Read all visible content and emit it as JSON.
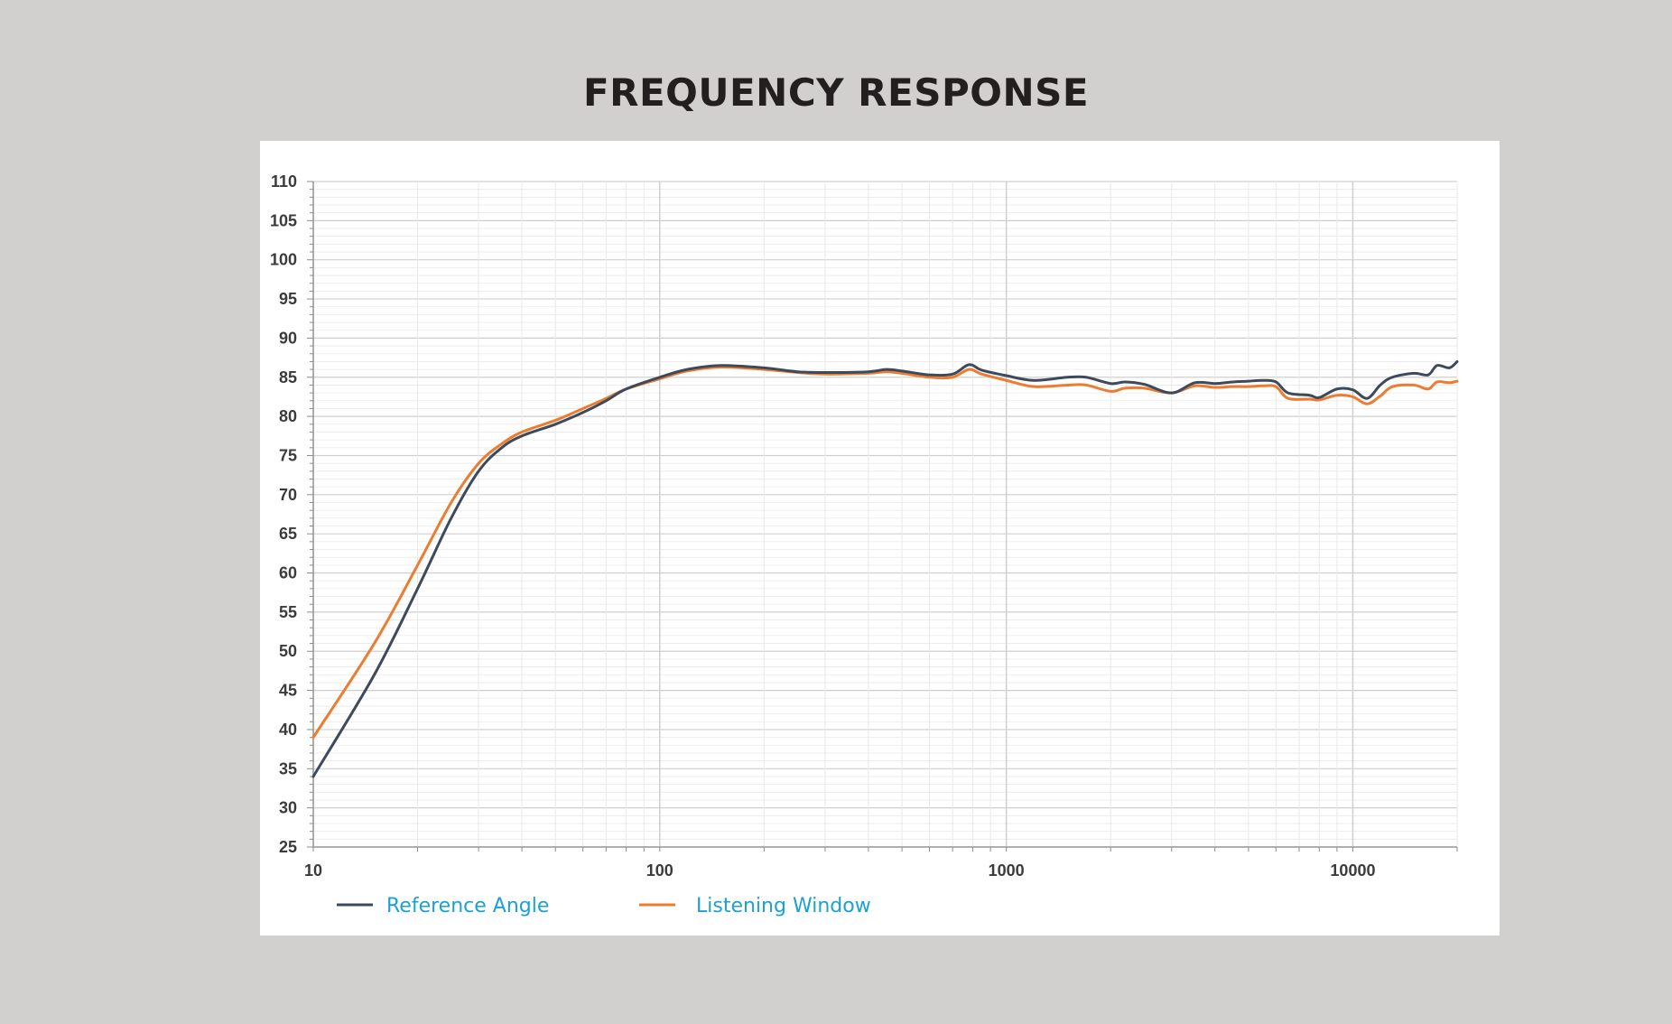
{
  "title": "FREQUENCY RESPONSE",
  "colors": {
    "background": "#d1d0ce",
    "panel": "#ffffff",
    "reference_angle": "#3d4a5c",
    "listening_window": "#ec7c30",
    "legend_text": "#1ba1d6",
    "grid_major": "#cfcfcf",
    "grid_minor": "#e9e9e9"
  },
  "chart_data": {
    "type": "line",
    "title": "FREQUENCY RESPONSE",
    "xlabel": "",
    "ylabel": "",
    "xscale": "log",
    "xlim": [
      10,
      20000
    ],
    "ylim": [
      25,
      110
    ],
    "grid": true,
    "legend_position": "bottom-left",
    "x_ticks": [
      10,
      100,
      1000,
      10000
    ],
    "x_tick_labels": [
      "10",
      "100",
      "1000",
      "10000"
    ],
    "y_ticks": [
      110,
      105,
      100,
      95,
      90,
      85,
      80,
      75,
      70,
      65,
      60,
      55,
      50,
      45,
      40,
      35,
      30,
      25
    ],
    "y_tick_labels": [
      "110",
      "105",
      "100",
      "95",
      "90",
      "85",
      "80",
      "75",
      "70",
      "65",
      "60",
      "55",
      "50",
      "45",
      "40",
      "35",
      "30",
      "25"
    ],
    "series": [
      {
        "name": "Reference Angle",
        "color": "#3d4a5c",
        "points": [
          [
            10,
            34
          ],
          [
            15,
            47
          ],
          [
            20,
            58
          ],
          [
            25,
            67
          ],
          [
            30,
            73
          ],
          [
            35,
            76
          ],
          [
            40,
            77.5
          ],
          [
            50,
            79
          ],
          [
            60,
            80.5
          ],
          [
            70,
            82
          ],
          [
            80,
            83.5
          ],
          [
            100,
            85
          ],
          [
            120,
            86
          ],
          [
            150,
            86.5
          ],
          [
            200,
            86.2
          ],
          [
            250,
            85.7
          ],
          [
            300,
            85.6
          ],
          [
            400,
            85.7
          ],
          [
            450,
            86
          ],
          [
            500,
            85.8
          ],
          [
            600,
            85.3
          ],
          [
            700,
            85.4
          ],
          [
            780,
            86.6
          ],
          [
            850,
            85.9
          ],
          [
            1000,
            85.2
          ],
          [
            1200,
            84.6
          ],
          [
            1500,
            85
          ],
          [
            1700,
            85
          ],
          [
            2000,
            84.2
          ],
          [
            2200,
            84.4
          ],
          [
            2500,
            84.1
          ],
          [
            3000,
            83
          ],
          [
            3500,
            84.3
          ],
          [
            4000,
            84.2
          ],
          [
            4500,
            84.4
          ],
          [
            5000,
            84.5
          ],
          [
            5500,
            84.6
          ],
          [
            6000,
            84.4
          ],
          [
            6500,
            83
          ],
          [
            7500,
            82.7
          ],
          [
            8000,
            82.4
          ],
          [
            9000,
            83.5
          ],
          [
            10000,
            83.4
          ],
          [
            11000,
            82.3
          ],
          [
            12000,
            84
          ],
          [
            13000,
            85
          ],
          [
            15000,
            85.5
          ],
          [
            16500,
            85.3
          ],
          [
            17500,
            86.5
          ],
          [
            19000,
            86.2
          ],
          [
            20000,
            87
          ]
        ]
      },
      {
        "name": "Listening Window",
        "color": "#ec7c30",
        "points": [
          [
            10,
            39
          ],
          [
            15,
            51
          ],
          [
            20,
            61
          ],
          [
            25,
            69
          ],
          [
            30,
            74
          ],
          [
            35,
            76.5
          ],
          [
            40,
            78
          ],
          [
            50,
            79.5
          ],
          [
            60,
            81
          ],
          [
            70,
            82.3
          ],
          [
            80,
            83.5
          ],
          [
            100,
            84.8
          ],
          [
            120,
            85.8
          ],
          [
            150,
            86.3
          ],
          [
            200,
            86
          ],
          [
            250,
            85.6
          ],
          [
            300,
            85.4
          ],
          [
            400,
            85.5
          ],
          [
            450,
            85.7
          ],
          [
            500,
            85.5
          ],
          [
            600,
            85
          ],
          [
            700,
            85
          ],
          [
            780,
            86
          ],
          [
            850,
            85.4
          ],
          [
            1000,
            84.6
          ],
          [
            1200,
            83.8
          ],
          [
            1500,
            84
          ],
          [
            1700,
            84
          ],
          [
            2000,
            83.2
          ],
          [
            2200,
            83.6
          ],
          [
            2500,
            83.6
          ],
          [
            3000,
            83
          ],
          [
            3500,
            83.9
          ],
          [
            4000,
            83.7
          ],
          [
            4500,
            83.8
          ],
          [
            5000,
            83.8
          ],
          [
            5500,
            83.9
          ],
          [
            6000,
            83.8
          ],
          [
            6500,
            82.3
          ],
          [
            7500,
            82.2
          ],
          [
            8000,
            82.1
          ],
          [
            9000,
            82.7
          ],
          [
            10000,
            82.5
          ],
          [
            11000,
            81.6
          ],
          [
            12000,
            82.6
          ],
          [
            13000,
            83.8
          ],
          [
            15000,
            84
          ],
          [
            16500,
            83.5
          ],
          [
            17500,
            84.4
          ],
          [
            19000,
            84.3
          ],
          [
            20000,
            84.5
          ]
        ]
      }
    ]
  }
}
